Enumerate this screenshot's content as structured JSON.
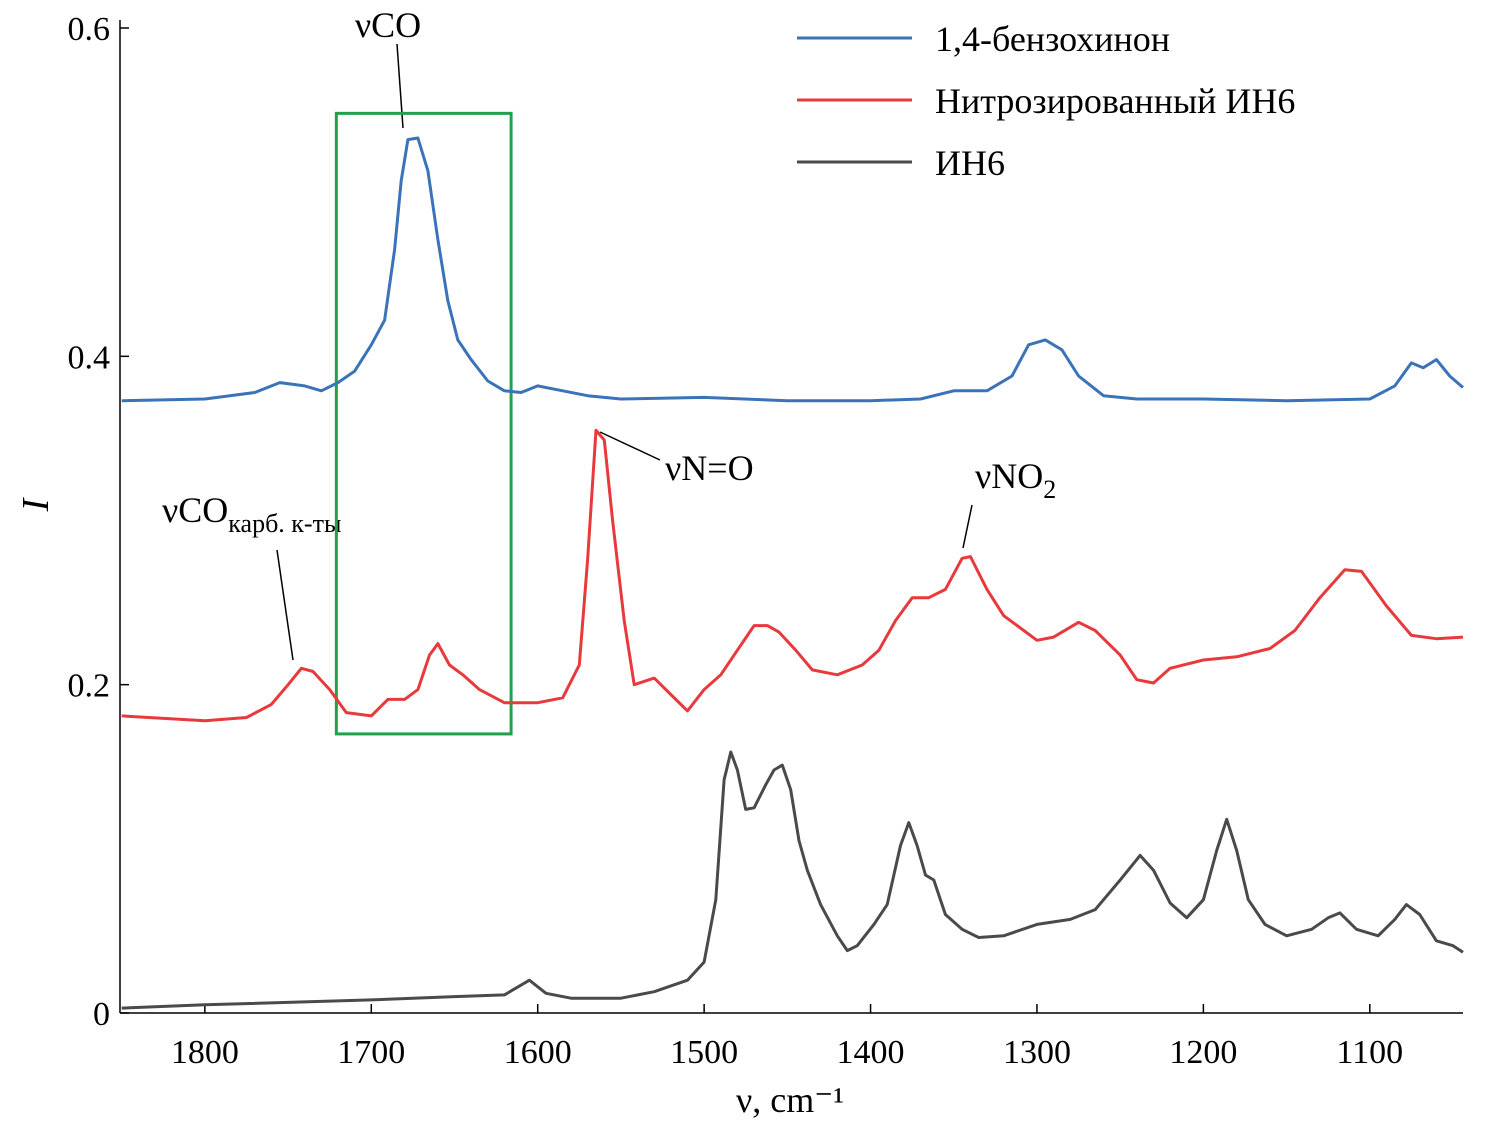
{
  "chart_data": {
    "type": "line",
    "xlabel": "ν, cm⁻¹",
    "ylabel": "I",
    "xlim": [
      1851,
      1044
    ],
    "ylim": [
      0,
      0.6
    ],
    "xticks": [
      1800,
      1700,
      1600,
      1500,
      1400,
      1300,
      1200,
      1100
    ],
    "yticks": [
      0,
      0.2,
      0.4,
      0.6
    ],
    "legend": "upper right",
    "highlight": {
      "x": [
        1721,
        1616
      ],
      "y": [
        0.17,
        0.548
      ],
      "color": "#22a04a"
    },
    "annotations": [
      {
        "text": "νCO"
      },
      {
        "text": "νN=O"
      },
      {
        "text": "νNO",
        "sub": "2"
      },
      {
        "text": "νCO",
        "sub": "карб. к-ты"
      }
    ],
    "series": [
      {
        "name": "1,4-бензохинон",
        "color": "#3a73b8",
        "x": [
          1850,
          1800,
          1770,
          1755,
          1740,
          1730,
          1720,
          1710,
          1700,
          1692,
          1686,
          1682,
          1678,
          1672,
          1666,
          1660,
          1654,
          1648,
          1640,
          1630,
          1620,
          1610,
          1600,
          1590,
          1570,
          1550,
          1500,
          1450,
          1400,
          1370,
          1350,
          1330,
          1315,
          1305,
          1295,
          1285,
          1275,
          1260,
          1240,
          1200,
          1150,
          1100,
          1085,
          1075,
          1068,
          1060,
          1052,
          1044
        ],
        "values": [
          0.373,
          0.374,
          0.378,
          0.384,
          0.382,
          0.379,
          0.384,
          0.391,
          0.407,
          0.422,
          0.465,
          0.507,
          0.532,
          0.533,
          0.513,
          0.471,
          0.434,
          0.41,
          0.398,
          0.385,
          0.379,
          0.378,
          0.382,
          0.38,
          0.376,
          0.374,
          0.375,
          0.373,
          0.373,
          0.374,
          0.379,
          0.379,
          0.388,
          0.407,
          0.41,
          0.404,
          0.388,
          0.376,
          0.374,
          0.374,
          0.373,
          0.374,
          0.382,
          0.396,
          0.393,
          0.398,
          0.388,
          0.381
        ]
      },
      {
        "name": "Нитрозированный ИН6",
        "color": "#e8393d",
        "x": [
          1850,
          1800,
          1775,
          1760,
          1750,
          1742,
          1735,
          1725,
          1715,
          1700,
          1690,
          1680,
          1672,
          1665,
          1660,
          1653,
          1645,
          1635,
          1620,
          1600,
          1585,
          1575,
          1570,
          1565,
          1560,
          1555,
          1548,
          1542,
          1530,
          1520,
          1510,
          1500,
          1490,
          1480,
          1470,
          1462,
          1455,
          1445,
          1435,
          1420,
          1405,
          1395,
          1385,
          1375,
          1365,
          1355,
          1345,
          1340,
          1330,
          1320,
          1300,
          1290,
          1275,
          1265,
          1250,
          1240,
          1230,
          1220,
          1200,
          1180,
          1160,
          1145,
          1130,
          1115,
          1105,
          1090,
          1075,
          1060,
          1044
        ],
        "values": [
          0.181,
          0.178,
          0.18,
          0.188,
          0.2,
          0.21,
          0.208,
          0.197,
          0.183,
          0.181,
          0.191,
          0.191,
          0.197,
          0.218,
          0.225,
          0.212,
          0.206,
          0.197,
          0.189,
          0.189,
          0.192,
          0.212,
          0.276,
          0.355,
          0.349,
          0.3,
          0.239,
          0.2,
          0.204,
          0.194,
          0.184,
          0.197,
          0.206,
          0.221,
          0.236,
          0.236,
          0.232,
          0.221,
          0.209,
          0.206,
          0.212,
          0.221,
          0.239,
          0.253,
          0.253,
          0.258,
          0.277,
          0.278,
          0.258,
          0.242,
          0.227,
          0.229,
          0.238,
          0.233,
          0.218,
          0.203,
          0.201,
          0.21,
          0.215,
          0.217,
          0.222,
          0.233,
          0.253,
          0.27,
          0.269,
          0.248,
          0.23,
          0.228,
          0.229
        ]
      },
      {
        "name": "ИН6",
        "color": "#4a4a4a",
        "x": [
          1850,
          1800,
          1700,
          1650,
          1620,
          1610,
          1605,
          1595,
          1580,
          1550,
          1530,
          1510,
          1500,
          1493,
          1488,
          1484,
          1480,
          1475,
          1470,
          1463,
          1458,
          1453,
          1448,
          1443,
          1438,
          1430,
          1420,
          1414,
          1408,
          1398,
          1390,
          1382,
          1377,
          1372,
          1367,
          1362,
          1355,
          1345,
          1335,
          1320,
          1300,
          1280,
          1265,
          1250,
          1238,
          1230,
          1220,
          1210,
          1200,
          1192,
          1186,
          1180,
          1173,
          1163,
          1150,
          1135,
          1125,
          1118,
          1108,
          1095,
          1085,
          1078,
          1070,
          1060,
          1050,
          1044
        ],
        "values": [
          0.003,
          0.005,
          0.008,
          0.01,
          0.011,
          0.017,
          0.02,
          0.012,
          0.009,
          0.009,
          0.013,
          0.02,
          0.031,
          0.069,
          0.142,
          0.159,
          0.148,
          0.124,
          0.125,
          0.139,
          0.148,
          0.151,
          0.136,
          0.105,
          0.087,
          0.066,
          0.047,
          0.038,
          0.041,
          0.054,
          0.066,
          0.102,
          0.116,
          0.102,
          0.084,
          0.081,
          0.06,
          0.051,
          0.046,
          0.047,
          0.054,
          0.057,
          0.063,
          0.081,
          0.096,
          0.087,
          0.067,
          0.058,
          0.069,
          0.099,
          0.118,
          0.099,
          0.069,
          0.054,
          0.047,
          0.051,
          0.058,
          0.061,
          0.051,
          0.047,
          0.057,
          0.066,
          0.06,
          0.044,
          0.041,
          0.037
        ]
      }
    ]
  }
}
